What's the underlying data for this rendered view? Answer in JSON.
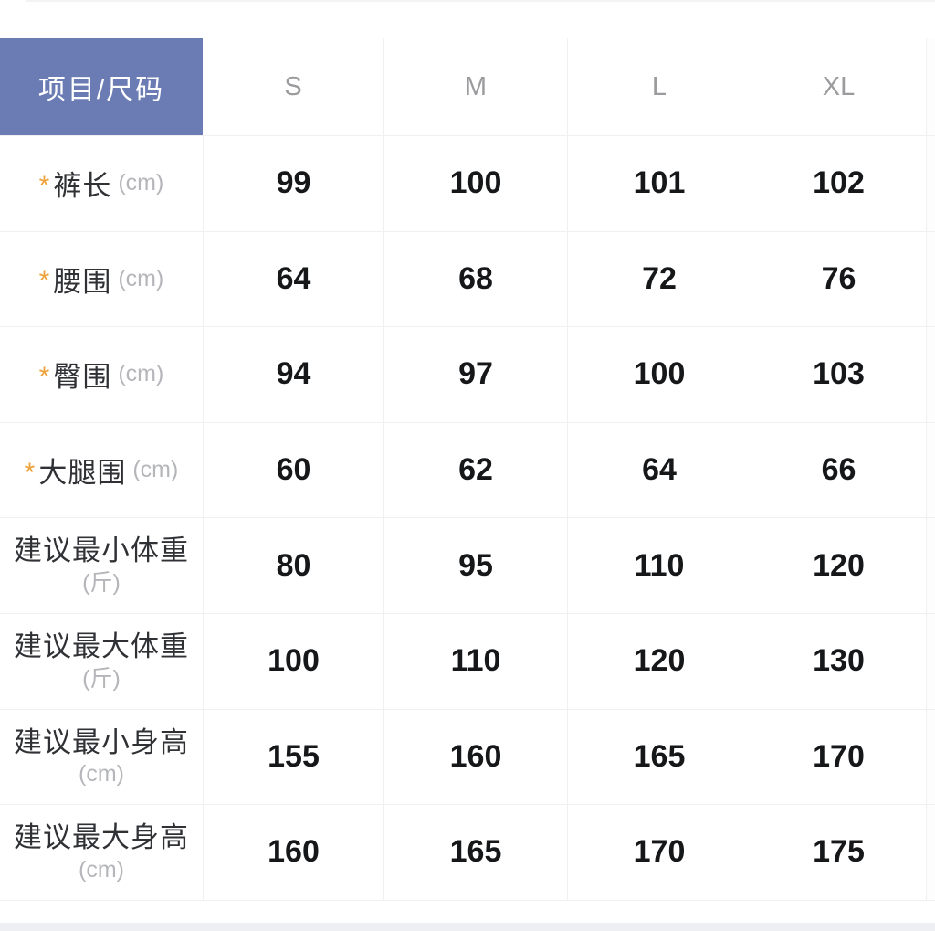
{
  "header": {
    "corner": "项目/尺码",
    "sizes": [
      "S",
      "M",
      "L",
      "XL"
    ]
  },
  "rows": [
    {
      "required": "*",
      "label": "裤长",
      "unit": "(cm)",
      "values": [
        "99",
        "100",
        "101",
        "102"
      ]
    },
    {
      "required": "*",
      "label": "腰围",
      "unit": "(cm)",
      "values": [
        "64",
        "68",
        "72",
        "76"
      ]
    },
    {
      "required": "*",
      "label": "臀围",
      "unit": "(cm)",
      "values": [
        "94",
        "97",
        "100",
        "103"
      ]
    },
    {
      "required": "*",
      "label": "大腿围",
      "unit": "(cm)",
      "values": [
        "60",
        "62",
        "64",
        "66"
      ]
    },
    {
      "label": "建议最小体重",
      "unit": "(斤)",
      "values": [
        "80",
        "95",
        "110",
        "120"
      ]
    },
    {
      "label": "建议最大体重",
      "unit": "(斤)",
      "values": [
        "100",
        "110",
        "120",
        "130"
      ]
    },
    {
      "label": "建议最小身高",
      "unit": "(cm)",
      "values": [
        "155",
        "160",
        "165",
        "170"
      ]
    },
    {
      "label": "建议最大身高",
      "unit": "(cm)",
      "values": [
        "160",
        "165",
        "170",
        "175"
      ]
    }
  ],
  "colors": {
    "header_bg": "#6a7cb3",
    "header_text": "#ffffff",
    "size_text": "#9b9b9e",
    "value_text": "#161719",
    "label_text": "#303135",
    "unit_text": "#b5b6ba",
    "asterisk": "#efa23a",
    "grid_line": "#f0f0f2",
    "bottom_band": "#edeff2"
  }
}
